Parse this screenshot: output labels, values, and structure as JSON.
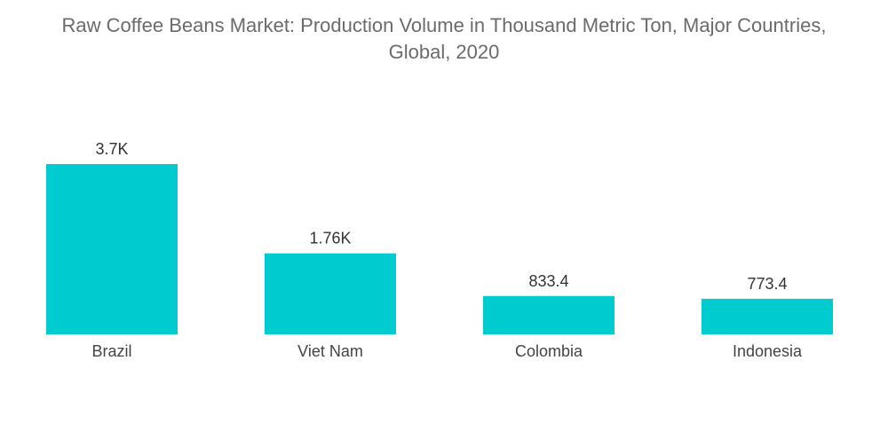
{
  "chart_data": {
    "type": "bar",
    "title_lines": [
      "Raw Coffee Beans Market: Production Volume in Thousand Metric Ton, Major Countries,",
      "Global, 2020"
    ],
    "categories": [
      "Brazil",
      "Viet Nam",
      "Colombia",
      "Indonesia"
    ],
    "values": [
      3700,
      1760,
      833.4,
      773.4
    ],
    "value_labels": [
      "3.7K",
      "1.76K",
      "833.4",
      "773.4"
    ],
    "xlabel": "",
    "ylabel": "",
    "ylim": [
      0,
      3700
    ],
    "grid": false,
    "legend": "none",
    "bar_color": "#00cccf"
  }
}
